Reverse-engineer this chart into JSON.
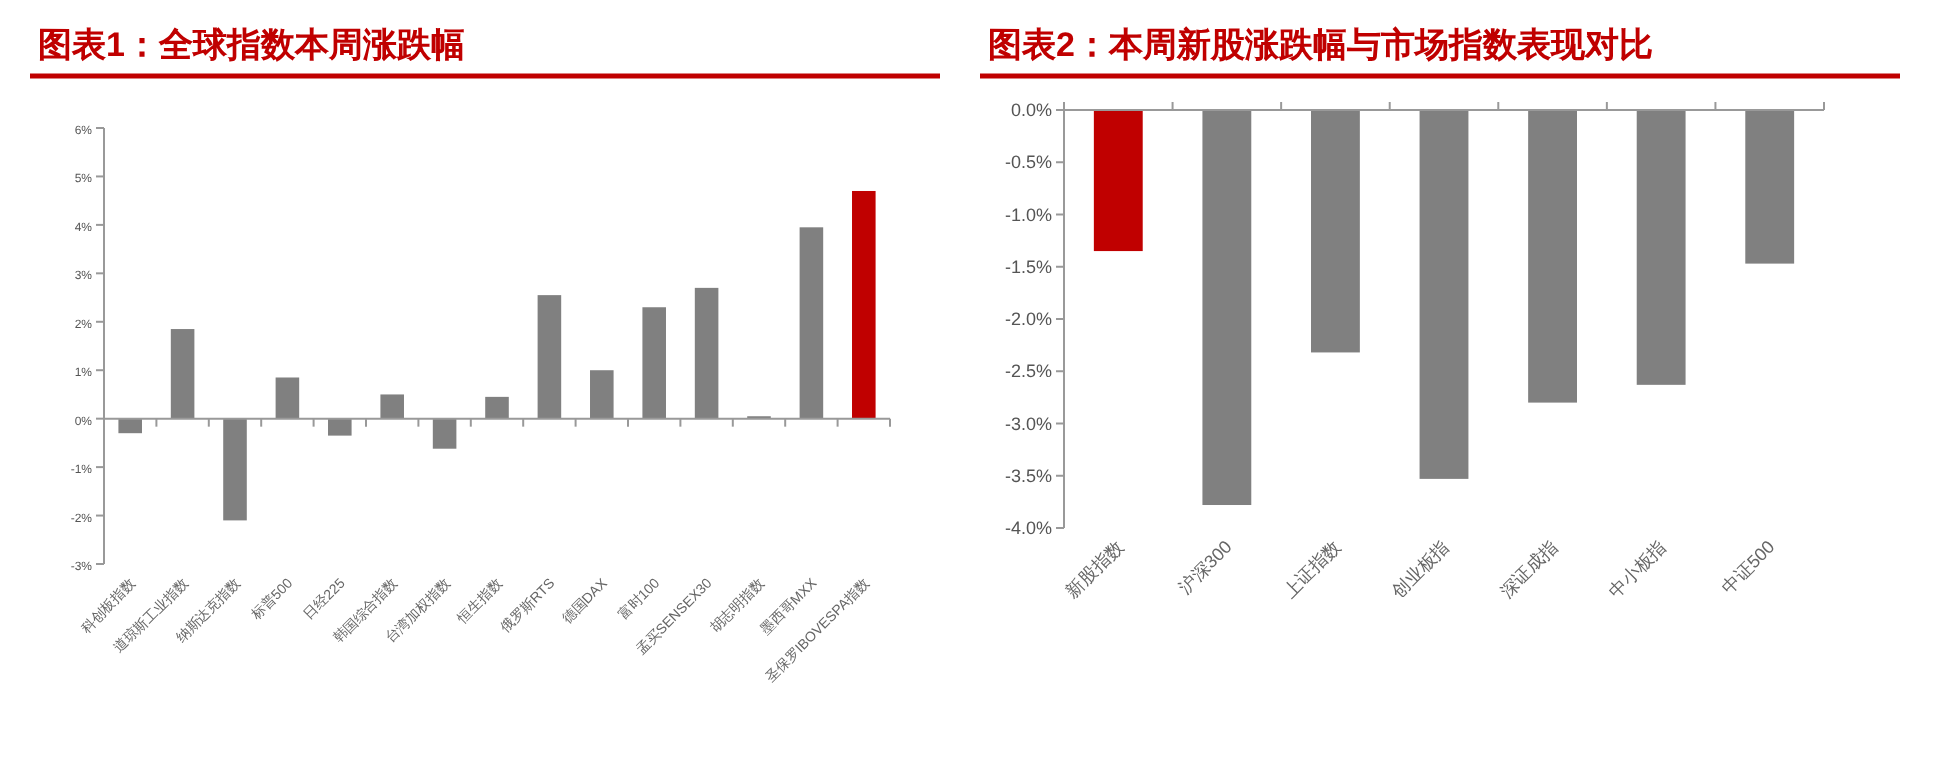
{
  "chart_data": [
    {
      "type": "bar",
      "title": "图表1：全球指数本周涨跌幅",
      "categories": [
        "科创板指数",
        "道琼斯工业指数",
        "纳斯达克指数",
        "标普500",
        "日经225",
        "韩国综合指数",
        "台湾加权指数",
        "恒生指数",
        "俄罗斯RTS",
        "德国DAX",
        "富时100",
        "孟买SENSEX30",
        "胡志明指数",
        "墨西哥MXX",
        "圣保罗IBOVESPA指数"
      ],
      "values": [
        -0.3,
        1.85,
        -2.1,
        0.85,
        -0.35,
        0.5,
        -0.62,
        0.45,
        2.55,
        1.0,
        2.3,
        2.7,
        0.05,
        3.95,
        4.7
      ],
      "colors": [
        "#808080",
        "#808080",
        "#808080",
        "#808080",
        "#808080",
        "#808080",
        "#808080",
        "#808080",
        "#808080",
        "#808080",
        "#808080",
        "#808080",
        "#808080",
        "#808080",
        "#c00000"
      ],
      "ylim": [
        -3,
        6
      ],
      "yticks": [
        {
          "value": -3,
          "label": "-3%"
        },
        {
          "value": -2,
          "label": "-2%"
        },
        {
          "value": -1,
          "label": "-1%"
        },
        {
          "value": 0,
          "label": "0%"
        },
        {
          "value": 1,
          "label": "1%"
        },
        {
          "value": 2,
          "label": "2%"
        },
        {
          "value": 3,
          "label": "3%"
        },
        {
          "value": 4,
          "label": "4%"
        },
        {
          "value": 5,
          "label": "5%"
        },
        {
          "value": 6,
          "label": "6%"
        }
      ]
    },
    {
      "type": "bar",
      "title": "图表2：本周新股涨跌幅与市场指数表现对比",
      "categories": [
        "新股指数",
        "沪深300",
        "上证指数",
        "创业板指",
        "深证成指",
        "中小板指",
        "中证500"
      ],
      "values": [
        -1.35,
        -3.78,
        -2.32,
        -3.53,
        -2.8,
        -2.63,
        -1.47
      ],
      "colors": [
        "#c00000",
        "#808080",
        "#808080",
        "#808080",
        "#808080",
        "#808080",
        "#808080"
      ],
      "ylim": [
        -4,
        0
      ],
      "yticks": [
        {
          "value": -4,
          "label": "-4.0%"
        },
        {
          "value": -3.5,
          "label": "-3.5%"
        },
        {
          "value": -3,
          "label": "-3.0%"
        },
        {
          "value": -2.5,
          "label": "-2.5%"
        },
        {
          "value": -2,
          "label": "-2.0%"
        },
        {
          "value": -1.5,
          "label": "-1.5%"
        },
        {
          "value": -1,
          "label": "-1.0%"
        },
        {
          "value": -0.5,
          "label": "-0.5%"
        },
        {
          "value": 0,
          "label": "0.0%"
        }
      ]
    }
  ]
}
